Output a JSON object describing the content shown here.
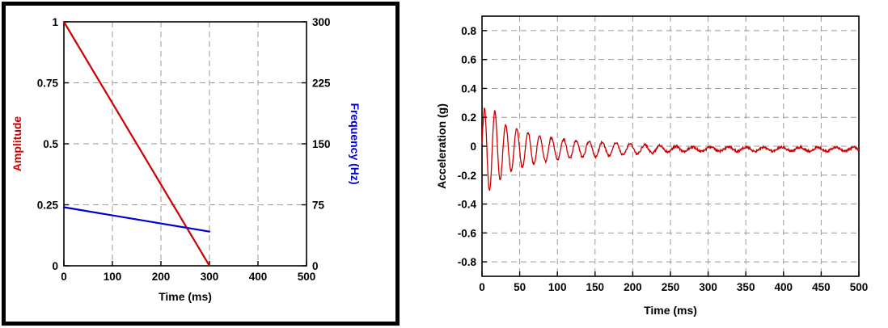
{
  "chart_data": [
    {
      "type": "line",
      "name": "sweep-profile",
      "xlabel": "Time (ms)",
      "xlim": [
        0,
        500
      ],
      "x_ticks": [
        0,
        100,
        200,
        300,
        400,
        500
      ],
      "grid": true,
      "left_axis": {
        "label": "Amplitude",
        "color": "#cc0000",
        "lim": [
          0,
          1
        ],
        "ticks": [
          0,
          0.25,
          0.5,
          0.75,
          1
        ]
      },
      "right_axis": {
        "label": "Frequency (Hz)",
        "color": "#0000cc",
        "lim": [
          0,
          300
        ],
        "ticks": [
          0,
          75,
          150,
          225,
          300
        ]
      },
      "series": [
        {
          "name": "amplitude",
          "axis": "left",
          "color": "#cc0000",
          "points": [
            [
              0,
              1
            ],
            [
              300,
              0
            ]
          ]
        },
        {
          "name": "frequency",
          "axis": "right",
          "color": "#0000cc",
          "points": [
            [
              0,
              72
            ],
            [
              300,
              42
            ]
          ]
        }
      ]
    },
    {
      "type": "line",
      "name": "acceleration-response",
      "xlabel": "Time (ms)",
      "ylabel": "Acceleration (g)",
      "xlim": [
        0,
        500
      ],
      "x_ticks": [
        0,
        50,
        100,
        150,
        200,
        250,
        300,
        350,
        400,
        450,
        500
      ],
      "ylim": [
        -0.9,
        0.9
      ],
      "y_ticks": [
        -0.8,
        -0.6,
        -0.4,
        -0.2,
        0,
        0.2,
        0.4,
        0.6,
        0.8
      ],
      "grid": true,
      "series": [
        {
          "name": "acceleration",
          "color": "#cc0000",
          "model": {
            "type": "decaying_chirp",
            "freq_start_hz": 72,
            "freq_end_hz": 42,
            "sweep_ms": 300,
            "baseline_g": -0.02,
            "noise_g": 0.008,
            "envelope": [
              [
                0,
                0.2
              ],
              [
                4,
                0.3
              ],
              [
                14,
                0.28
              ],
              [
                30,
                0.17
              ],
              [
                50,
                0.13
              ],
              [
                80,
                0.09
              ],
              [
                120,
                0.06
              ],
              [
                160,
                0.05
              ],
              [
                200,
                0.035
              ],
              [
                250,
                0.02
              ],
              [
                300,
                0.015
              ],
              [
                500,
                0.012
              ]
            ]
          }
        }
      ]
    }
  ]
}
